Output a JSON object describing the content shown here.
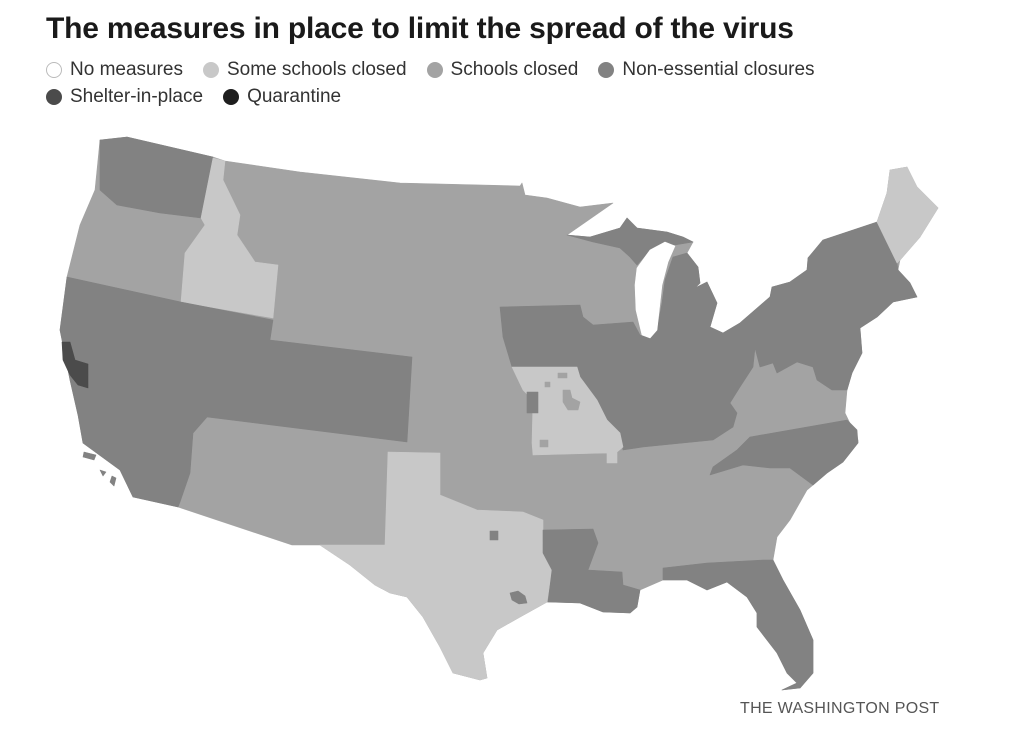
{
  "title": "The measures in place to limit the spread of the virus",
  "legend": [
    {
      "label": "No measures",
      "color": "#ffffff",
      "stroke": "#bbbbbb"
    },
    {
      "label": "Some schools closed",
      "color": "#c8c8c8"
    },
    {
      "label": "Schools closed",
      "color": "#a3a3a3"
    },
    {
      "label": "Non-essential closures",
      "color": "#828282"
    },
    {
      "label": "Shelter-in-place",
      "color": "#4b4b4b"
    },
    {
      "label": "Quarantine",
      "color": "#1e1e1e"
    }
  ],
  "map_data": {
    "region_measure_index": {
      "WA": 3,
      "OR": 2,
      "ID": 1,
      "CA": 3,
      "NV": 3,
      "UT": 3,
      "CO": 3,
      "CA_bay_area": 4,
      "MT": 2,
      "WY": 2,
      "ND": 2,
      "SD": 2,
      "NE": 2,
      "KS": 2,
      "OK": 2,
      "NM": 2,
      "AZ": 2,
      "MN": 2,
      "WI": 2,
      "IA": 3,
      "IL": 3,
      "IN": 3,
      "OH": 3,
      "MI": 3,
      "KY": 3,
      "PA": 3,
      "NY": 3,
      "NJ": 3,
      "MD": 3,
      "VT": 3,
      "MA": 3,
      "CT": 3,
      "ME": 1,
      "NH": 1,
      "MO": 1,
      "MO_kansas_city": 3,
      "TX": 1,
      "TX_dallas": 3,
      "TX_houston": 3,
      "LA": 3,
      "FL": 3,
      "NC": 3,
      "AR": 2,
      "TN": 2,
      "MS": 2,
      "AL": 2,
      "GA": 2,
      "SC": 2,
      "VA": 2,
      "WV": 2
    }
  },
  "credit": "THE WASHINGTON POST"
}
